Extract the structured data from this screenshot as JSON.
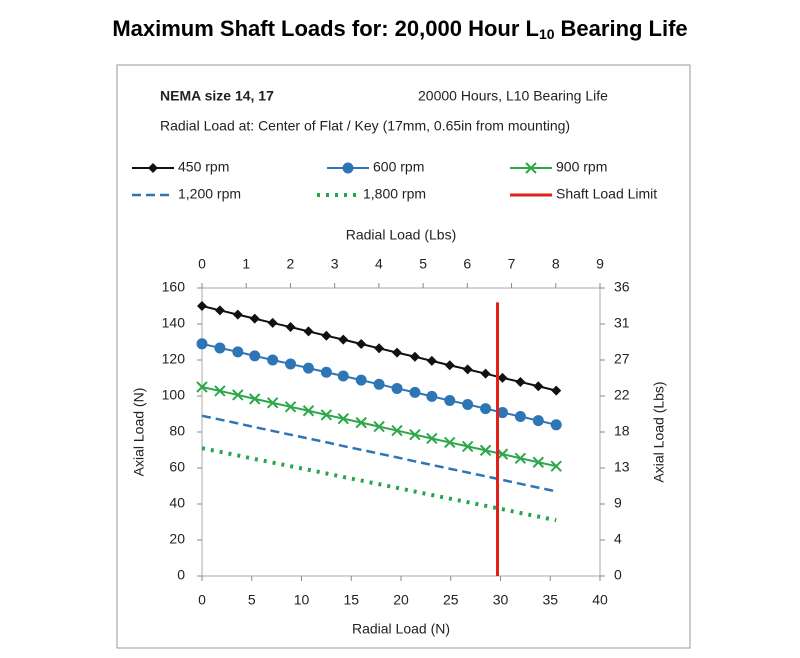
{
  "chart_data": {
    "type": "line",
    "title": [
      "Maximum Shaft Loads for: 20,000 Hour L",
      "10",
      "Bearing Life"
    ],
    "subtitle": "NEMA size 14, 17",
    "annotations": [
      "20000 Hours, L10 Bearing Life",
      "Radial Load at: Center of Flat / Key (17mm, 0.65in from mounting)"
    ],
    "xlabel": "Radial Load (N)",
    "x2label": "Radial Load (Lbs)",
    "ylabel": "Axial Load (N)",
    "y2label": "Axial Load (Lbs)",
    "xlim": [
      0,
      40
    ],
    "xticks": [
      0,
      5,
      10,
      15,
      20,
      25,
      30,
      35,
      40
    ],
    "x2lim": [
      0,
      9
    ],
    "x2ticks": [
      0,
      1,
      2,
      3,
      4,
      5,
      6,
      7,
      8,
      9
    ],
    "ylim": [
      0,
      160
    ],
    "yticks": [
      0,
      20,
      40,
      60,
      80,
      100,
      120,
      140,
      160
    ],
    "y2lim": [
      0,
      35.969
    ],
    "y2ticks": [
      0,
      {
        "value": 4.496,
        "label": "4"
      },
      {
        "value": 8.992,
        "label": "9"
      },
      {
        "value": 13.489,
        "label": "13"
      },
      {
        "value": 17.985,
        "label": "18"
      },
      {
        "value": 22.481,
        "label": "22"
      },
      {
        "value": 26.977,
        "label": "27"
      },
      {
        "value": 31.473,
        "label": "31"
      },
      {
        "value": 35.969,
        "label": "36"
      }
    ],
    "grid": false,
    "series": [
      {
        "name": "450 rpm",
        "color": "#111111",
        "marker": "diamond",
        "dash": "solid",
        "x": [
          0,
          1.8,
          3.6,
          5.3,
          7.1,
          8.9,
          10.7,
          12.5,
          14.2,
          16,
          17.8,
          19.6,
          21.4,
          23.1,
          24.9,
          26.7,
          28.5,
          30.2,
          32,
          33.8,
          35.6
        ],
        "values": [
          150,
          147.6,
          145.2,
          143,
          140.6,
          138.3,
          135.9,
          133.5,
          131.3,
          128.9,
          126.5,
          124.1,
          121.8,
          119.5,
          117.1,
          114.8,
          112.4,
          110.1,
          107.8,
          105.4,
          103
        ]
      },
      {
        "name": "600 rpm",
        "color": "#2e75b6",
        "marker": "circle",
        "dash": "solid",
        "x": [
          0,
          1.8,
          3.6,
          5.3,
          7.1,
          8.9,
          10.7,
          12.5,
          14.2,
          16,
          17.8,
          19.6,
          21.4,
          23.1,
          24.9,
          26.7,
          28.5,
          30.2,
          32,
          33.8,
          35.6
        ],
        "values": [
          129,
          126.7,
          124.5,
          122.3,
          120,
          117.8,
          115.5,
          113.2,
          111.1,
          108.8,
          106.5,
          104.2,
          102,
          99.8,
          97.5,
          95.3,
          93,
          90.8,
          88.6,
          86.3,
          84
        ]
      },
      {
        "name": "900 rpm",
        "color": "#2ca84a",
        "marker": "x",
        "dash": "solid",
        "x": [
          0,
          1.8,
          3.6,
          5.3,
          7.1,
          8.9,
          10.7,
          12.5,
          14.2,
          16,
          17.8,
          19.6,
          21.4,
          23.1,
          24.9,
          26.7,
          28.5,
          30.2,
          32,
          33.8,
          35.6
        ],
        "values": [
          105,
          102.8,
          100.6,
          98.4,
          96.2,
          94,
          91.8,
          89.5,
          87.4,
          85.2,
          83,
          80.8,
          78.5,
          76.4,
          74.2,
          72,
          69.8,
          67.7,
          65.4,
          63.2,
          61
        ]
      },
      {
        "name": "1,200 rpm",
        "color": "#2e75b6",
        "marker": "none",
        "dash": "dashed",
        "x": [
          0,
          1.8,
          3.6,
          5.3,
          7.1,
          8.9,
          10.7,
          12.5,
          14.2,
          16,
          17.8,
          19.6,
          21.4,
          23.1,
          24.9,
          26.7,
          28.5,
          30.2,
          32,
          33.8,
          35.6
        ],
        "values": [
          89,
          86.9,
          84.8,
          82.7,
          80.6,
          78.5,
          76.4,
          74.3,
          72.2,
          70.1,
          68,
          65.9,
          63.7,
          61.7,
          59.6,
          57.5,
          55.4,
          53.4,
          51.2,
          49.1,
          47
        ]
      },
      {
        "name": "1,800 rpm",
        "color": "#22a84a",
        "marker": "none",
        "dash": "dotted",
        "x": [
          0,
          1.8,
          3.6,
          5.3,
          7.1,
          8.9,
          10.7,
          12.5,
          14.2,
          16,
          17.8,
          19.6,
          21.4,
          23.1,
          24.9,
          26.7,
          28.5,
          30.2,
          32,
          33.8,
          35.6
        ],
        "values": [
          71,
          69,
          67,
          65,
          63,
          61,
          59,
          57,
          55,
          53,
          51,
          49,
          46.9,
          45,
          43,
          41,
          39,
          37.1,
          35,
          33,
          31
        ]
      },
      {
        "name": "Shaft Load Limit",
        "color": "#e0201b",
        "marker": "none",
        "dash": "solid",
        "x": [
          29.7,
          29.7
        ],
        "values": [
          0,
          152
        ]
      }
    ]
  }
}
